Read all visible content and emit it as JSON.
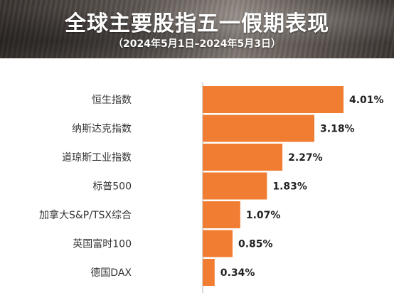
{
  "header": {
    "title": "全球主要股指五一假期表现",
    "subtitle": "（2024年5月1日–2024年5月3日）"
  },
  "chart_data": {
    "type": "bar",
    "orientation": "horizontal",
    "categories": [
      "恒生指数",
      "纳斯达克指数",
      "道琼斯工业指数",
      "标普500",
      "加拿大S&P/TSX综合",
      "英国富时100",
      "德国DAX"
    ],
    "values": [
      4.01,
      3.18,
      2.27,
      1.83,
      1.07,
      0.85,
      0.34
    ],
    "value_labels": [
      "4.01%",
      "3.18%",
      "2.27%",
      "1.83%",
      "1.07%",
      "0.85%",
      "0.34%"
    ],
    "xlim": [
      0,
      4.01
    ],
    "grid": false,
    "colors": {
      "bar": "#f07d32",
      "axis": "#b3b3b3",
      "text": "#333333"
    }
  }
}
